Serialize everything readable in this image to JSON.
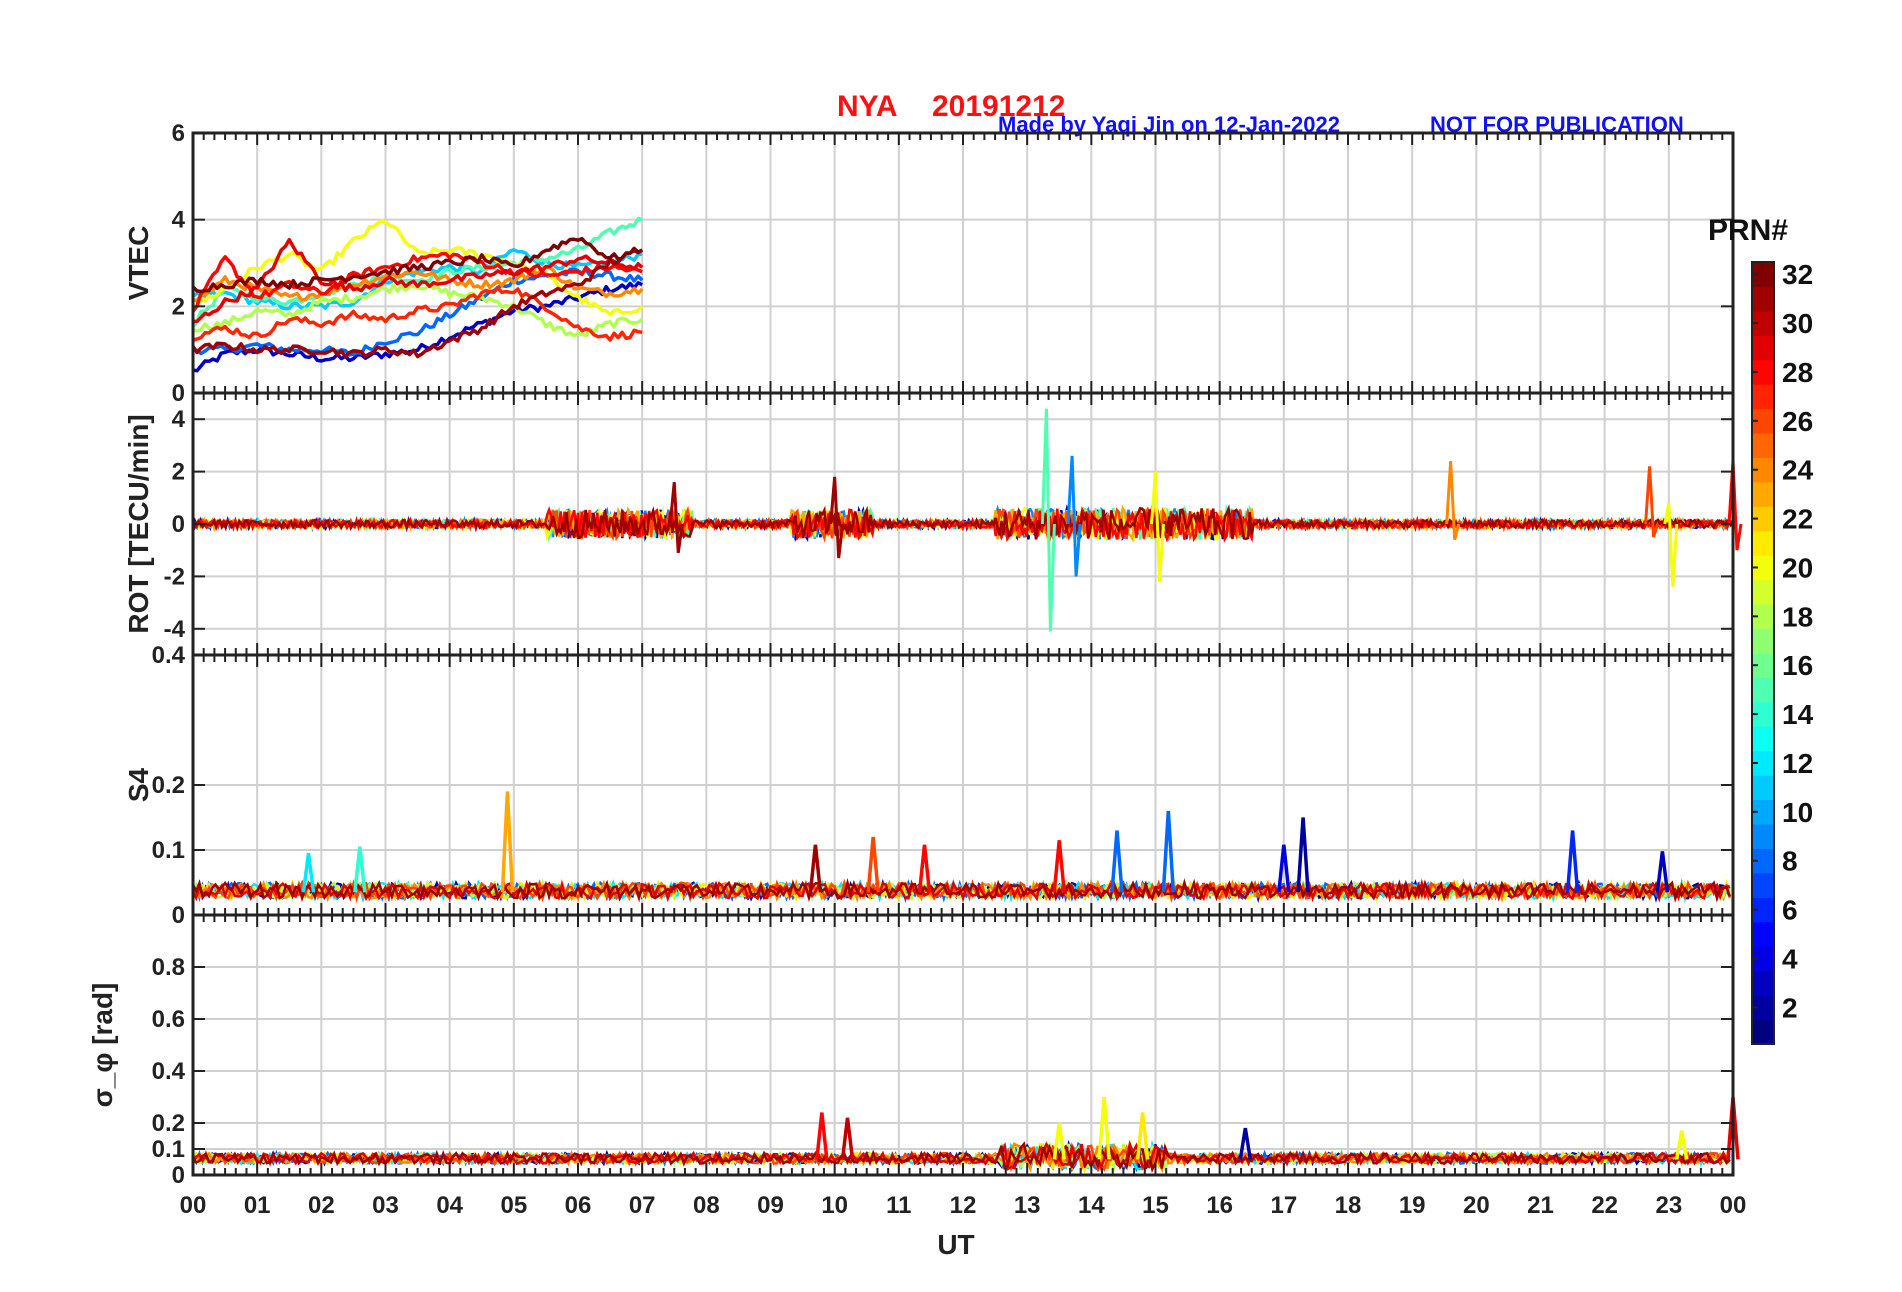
{
  "header": {
    "station": "NYA",
    "date": "20191212",
    "credit": "Made by Yaqi Jin on 12-Jan-2022",
    "notice": "NOT FOR PUBLICATION"
  },
  "colors": {
    "title": "#ff1010",
    "credit": "#1010ff",
    "grid": "#d0d0d0",
    "axis": "#222222"
  },
  "colorbar": {
    "label": "PRN#",
    "ticks": [
      "2",
      "4",
      "6",
      "8",
      "10",
      "12",
      "14",
      "16",
      "18",
      "20",
      "22",
      "24",
      "26",
      "28",
      "30",
      "32"
    ],
    "range": [
      1,
      32
    ],
    "colormap": "jet"
  },
  "chart_data": [
    {
      "type": "line",
      "ylabel": "VTEC",
      "ylim": [
        0,
        6
      ],
      "yticks": [
        "0",
        "2",
        "4",
        "6"
      ],
      "x_range_hours": [
        0,
        7
      ],
      "series": [
        {
          "prn": 3,
          "x": [
            0,
            0.5,
            1,
            1.5,
            2,
            2.5,
            3,
            3.5,
            4,
            4.5,
            5,
            5.5,
            6,
            6.5,
            7
          ],
          "values": [
            0.5,
            0.9,
            1.0,
            0.9,
            0.8,
            0.8,
            0.9,
            1.0,
            1.3,
            1.6,
            1.9,
            2.0,
            2.2,
            2.4,
            2.5
          ]
        },
        {
          "prn": 8,
          "x": [
            0,
            0.5,
            1,
            1.5,
            2,
            2.5,
            3,
            3.5,
            4,
            4.5,
            5,
            5.5,
            6,
            6.5,
            7
          ],
          "values": [
            1.0,
            1.0,
            1.1,
            1.0,
            1.0,
            0.9,
            1.2,
            1.4,
            1.8,
            2.2,
            2.6,
            2.7,
            2.8,
            2.7,
            2.6
          ]
        },
        {
          "prn": 11,
          "x": [
            0,
            0.5,
            1,
            1.5,
            2,
            2.5,
            3,
            3.5,
            4,
            4.5,
            5,
            5.5,
            6,
            6.5,
            7
          ],
          "values": [
            2.2,
            2.3,
            2.1,
            2.0,
            2.0,
            2.1,
            2.6,
            2.8,
            2.9,
            2.8,
            3.3,
            3.0,
            2.9,
            3.0,
            3.2
          ]
        },
        {
          "prn": 15,
          "x": [
            0,
            0.5,
            1,
            1.5,
            2,
            2.5,
            3,
            3.5,
            4,
            4.5,
            5,
            5.5,
            6,
            6.5,
            7
          ],
          "values": [
            1.6,
            2.4,
            2.2,
            2.1,
            2.3,
            2.5,
            2.7,
            2.6,
            2.8,
            2.9,
            3.0,
            3.1,
            3.3,
            3.7,
            4.0
          ]
        },
        {
          "prn": 18,
          "x": [
            0,
            0.5,
            1,
            1.5,
            2,
            2.5,
            3,
            3.5,
            4,
            4.5,
            5,
            5.5,
            6,
            6.5,
            7
          ],
          "values": [
            1.5,
            1.6,
            1.9,
            1.8,
            2.1,
            2.2,
            2.4,
            2.5,
            2.3,
            2.2,
            2.0,
            1.6,
            1.3,
            1.6,
            1.7
          ]
        },
        {
          "prn": 20,
          "x": [
            0,
            0.5,
            1,
            1.5,
            2,
            2.5,
            3,
            3.5,
            4,
            4.5,
            5,
            5.5,
            6,
            6.5,
            7
          ],
          "values": [
            2.0,
            2.4,
            2.9,
            3.2,
            2.8,
            3.5,
            4.0,
            3.2,
            3.3,
            3.2,
            3.0,
            2.7,
            2.2,
            1.8,
            2.0
          ]
        },
        {
          "prn": 24,
          "x": [
            0,
            0.5,
            1,
            1.5,
            2,
            2.5,
            3,
            3.5,
            4,
            4.5,
            5,
            5.5,
            6,
            6.5,
            7
          ],
          "values": [
            2.1,
            2.6,
            2.4,
            2.2,
            2.3,
            2.5,
            2.7,
            2.8,
            2.6,
            2.5,
            2.6,
            2.9,
            2.4,
            2.3,
            2.4
          ]
        },
        {
          "prn": 27,
          "x": [
            0,
            0.5,
            1,
            1.5,
            2,
            2.5,
            3,
            3.5,
            4,
            4.5,
            5,
            5.5,
            6,
            6.5,
            7
          ],
          "values": [
            1.3,
            1.5,
            1.3,
            1.7,
            1.6,
            1.8,
            1.7,
            1.9,
            2.0,
            2.3,
            2.4,
            2.0,
            1.5,
            1.3,
            1.4
          ]
        },
        {
          "prn": 28,
          "x": [
            0,
            0.5,
            1,
            1.5,
            2,
            2.5,
            3,
            3.5,
            4,
            4.5,
            5,
            5.5,
            6,
            6.5,
            7
          ],
          "values": [
            1.9,
            3.1,
            2.2,
            2.5,
            2.3,
            2.7,
            2.9,
            3.1,
            3.2,
            3.0,
            2.8,
            2.7,
            2.8,
            2.9,
            2.8
          ]
        },
        {
          "prn": 29,
          "x": [
            0,
            0.5,
            1,
            1.5,
            2,
            2.5,
            3,
            3.5,
            4,
            4.5,
            5,
            5.5,
            6,
            6.5,
            7
          ],
          "values": [
            1.6,
            2.1,
            2.4,
            3.5,
            2.6,
            2.4,
            2.6,
            2.5,
            2.6,
            2.7,
            2.8,
            2.9,
            3.1,
            3.0,
            2.9
          ]
        },
        {
          "prn": 31,
          "x": [
            0,
            0.5,
            1,
            1.5,
            2,
            2.5,
            3,
            3.5,
            4,
            4.5,
            5,
            5.5,
            6,
            6.5,
            7
          ],
          "values": [
            1.0,
            1.1,
            1.0,
            1.0,
            1.0,
            0.9,
            1.0,
            0.9,
            1.2,
            1.5,
            2.0,
            2.3,
            2.5,
            3.0,
            3.3
          ]
        },
        {
          "prn": 32,
          "x": [
            0,
            0.5,
            1,
            1.5,
            2,
            2.5,
            3,
            3.5,
            4,
            4.5,
            5,
            5.5,
            6,
            6.5,
            7
          ],
          "values": [
            2.4,
            2.5,
            2.6,
            2.5,
            2.6,
            2.7,
            2.8,
            2.9,
            3.0,
            3.1,
            2.9,
            3.3,
            3.6,
            3.1,
            3.3
          ]
        }
      ]
    },
    {
      "type": "line",
      "ylabel": "ROT [TECU/min]",
      "ylim": [
        -5,
        5
      ],
      "yticks": [
        "-4",
        "-2",
        "0",
        "2",
        "4"
      ],
      "x_range_hours": [
        0,
        24
      ],
      "spikes": [
        {
          "prn": 15,
          "hour": 13.3,
          "max": 4.4,
          "min": -4.1
        },
        {
          "prn": 9,
          "hour": 13.7,
          "max": 2.6,
          "min": -2.0
        },
        {
          "prn": 20,
          "hour": 15.0,
          "max": 2.0,
          "min": -2.2
        },
        {
          "prn": 24,
          "hour": 19.6,
          "max": 2.4,
          "min": -0.6
        },
        {
          "prn": 26,
          "hour": 22.7,
          "max": 2.2,
          "min": -0.5
        },
        {
          "prn": 20,
          "hour": 23.0,
          "max": 0.8,
          "min": -2.4
        },
        {
          "prn": 28,
          "hour": 24.0,
          "max": 2.4,
          "min": -1.0
        },
        {
          "prn": 31,
          "hour": 7.5,
          "max": 1.6,
          "min": -1.1
        },
        {
          "prn": 31,
          "hour": 10.0,
          "max": 1.8,
          "min": -1.3
        }
      ]
    },
    {
      "type": "line",
      "ylabel": "S4",
      "ylim": [
        0,
        0.4
      ],
      "yticks": [
        "0",
        "0.1",
        "0.2",
        "0.4"
      ],
      "x_range_hours": [
        0,
        24
      ],
      "baseline": 0.035,
      "spikes": [
        {
          "prn": 23,
          "hour": 4.9,
          "value": 0.19
        },
        {
          "prn": 14,
          "hour": 2.6,
          "value": 0.105
        },
        {
          "prn": 12,
          "hour": 1.8,
          "value": 0.095
        },
        {
          "prn": 31,
          "hour": 9.7,
          "value": 0.108
        },
        {
          "prn": 26,
          "hour": 10.6,
          "value": 0.12
        },
        {
          "prn": 28,
          "hour": 11.4,
          "value": 0.108
        },
        {
          "prn": 28,
          "hour": 13.5,
          "value": 0.115
        },
        {
          "prn": 8,
          "hour": 14.4,
          "value": 0.13
        },
        {
          "prn": 8,
          "hour": 15.2,
          "value": 0.16
        },
        {
          "prn": 2,
          "hour": 17.3,
          "value": 0.15
        },
        {
          "prn": 4,
          "hour": 17.0,
          "value": 0.108
        },
        {
          "prn": 6,
          "hour": 21.5,
          "value": 0.13
        },
        {
          "prn": 3,
          "hour": 22.9,
          "value": 0.098
        }
      ]
    },
    {
      "type": "line",
      "ylabel": "σ_φ [rad]",
      "ylim": [
        0,
        1
      ],
      "yticks": [
        "0",
        "0.1",
        "0.2",
        "0.4",
        "0.6",
        "0.8"
      ],
      "xlabel": "UT",
      "x_range_hours": [
        0,
        24
      ],
      "baseline": 0.06,
      "spikes": [
        {
          "prn": 28,
          "hour": 9.8,
          "value": 0.24
        },
        {
          "prn": 30,
          "hour": 10.2,
          "value": 0.22
        },
        {
          "prn": 20,
          "hour": 13.5,
          "value": 0.2
        },
        {
          "prn": 20,
          "hour": 14.2,
          "value": 0.3
        },
        {
          "prn": 21,
          "hour": 14.8,
          "value": 0.24
        },
        {
          "prn": 2,
          "hour": 16.4,
          "value": 0.18
        },
        {
          "prn": 20,
          "hour": 23.2,
          "value": 0.17
        },
        {
          "prn": 29,
          "hour": 24.0,
          "value": 0.3
        }
      ]
    }
  ],
  "x_axis": {
    "label": "UT",
    "ticks": [
      "00",
      "01",
      "02",
      "03",
      "04",
      "05",
      "06",
      "07",
      "08",
      "09",
      "10",
      "11",
      "12",
      "13",
      "14",
      "15",
      "16",
      "17",
      "18",
      "19",
      "20",
      "21",
      "22",
      "23",
      "00"
    ]
  }
}
